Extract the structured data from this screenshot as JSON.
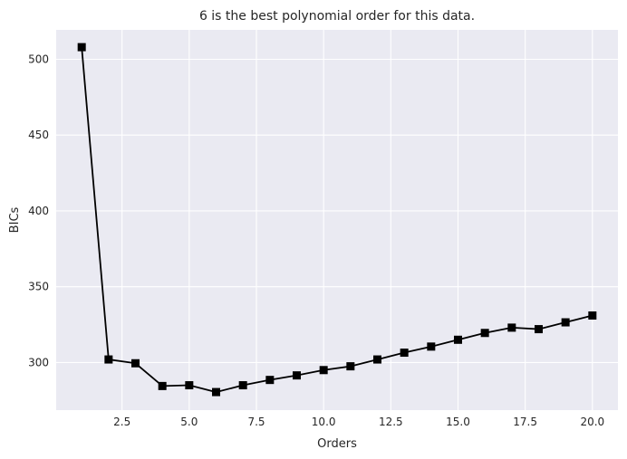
{
  "chart_data": {
    "type": "line",
    "title": "6 is the best polynomial order for this data.",
    "xlabel": "Orders",
    "ylabel": "BICs",
    "x": [
      1,
      2,
      3,
      4,
      5,
      6,
      7,
      8,
      9,
      10,
      11,
      12,
      13,
      14,
      15,
      16,
      17,
      18,
      19,
      20
    ],
    "series": [
      {
        "values": [
          508,
          302,
          299.5,
          284.5,
          285,
          280.5,
          285,
          288.5,
          291.5,
          295,
          297.5,
          302,
          306.5,
          310.5,
          315,
          319.5,
          323,
          322,
          326.5,
          331
        ]
      }
    ],
    "xlim": [
      0.05,
      20.95
    ],
    "ylim": [
      268.6,
      519.4
    ],
    "xticks": [
      2.5,
      5.0,
      7.5,
      10.0,
      12.5,
      15.0,
      17.5,
      20.0
    ],
    "xtick_labels": [
      "2.5",
      "5.0",
      "7.5",
      "10.0",
      "12.5",
      "15.0",
      "17.5",
      "20.0"
    ],
    "yticks": [
      300,
      350,
      400,
      450,
      500
    ],
    "ytick_labels": [
      "300",
      "350",
      "400",
      "450",
      "500"
    ],
    "grid": true,
    "marker": "square",
    "line_color": "#000000",
    "background_color": "#eaeaf2",
    "grid_color": "#ffffff"
  }
}
